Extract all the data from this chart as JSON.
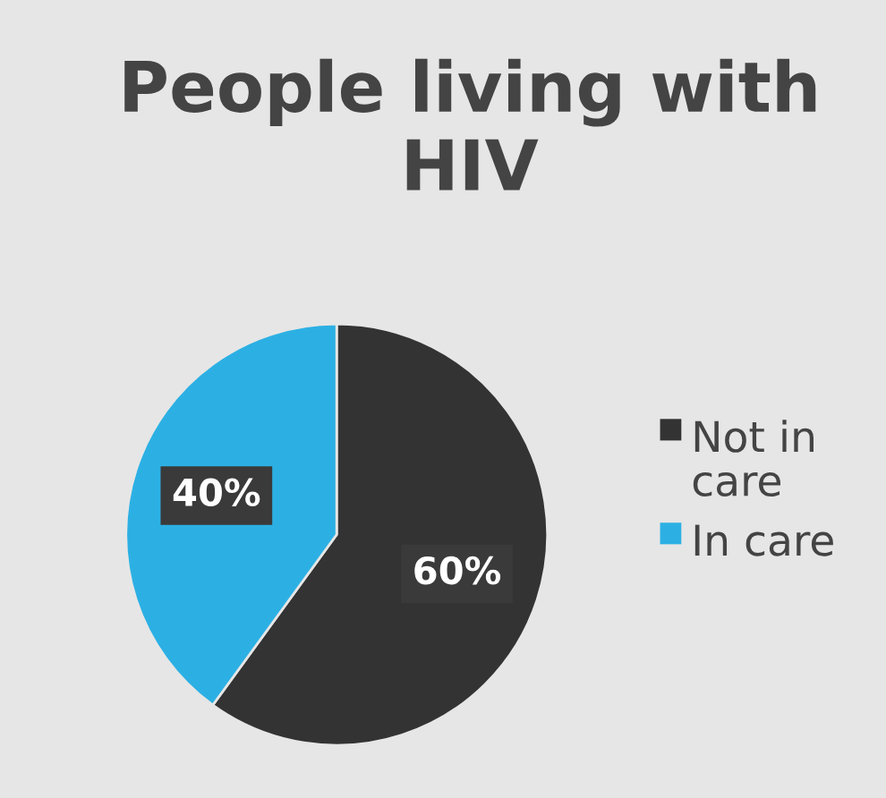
{
  "chart_data": {
    "type": "pie",
    "title": "People living with HIV",
    "categories": [
      "Not in care",
      "In care"
    ],
    "values": [
      60,
      40
    ],
    "colors": [
      "#333333",
      "#2cb0e4"
    ],
    "value_labels": [
      "60%",
      "40%"
    ],
    "legend": "right"
  }
}
